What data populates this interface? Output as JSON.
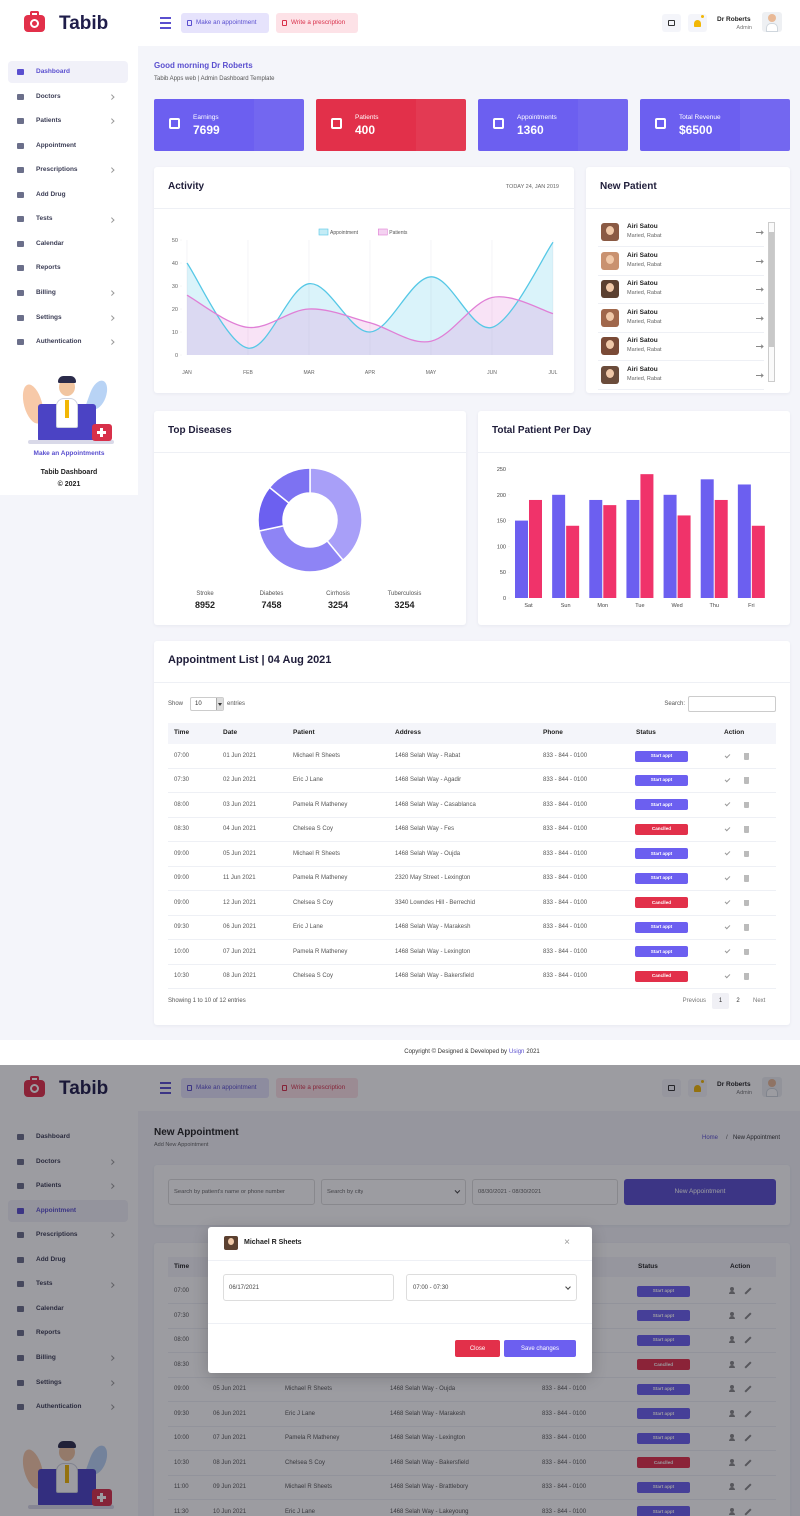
{
  "header": {
    "brand": "Tabib",
    "buttons": [
      "Make an appointment",
      "Write a prescription"
    ],
    "user": {
      "name": "Dr Roberts",
      "role": "Admin"
    }
  },
  "sidebar": {
    "menu": [
      "Dashboard",
      "Doctors",
      "Patients",
      "Appointment",
      "Prescriptions",
      "Add Drug",
      "Tests",
      "Calendar",
      "Reports",
      "Billing",
      "Settings",
      "Authentication"
    ],
    "promo": {
      "link": "Make an Appointments",
      "title": "Tabib Dashboard",
      "year": "© 2021"
    }
  },
  "greeting": {
    "title": "Good morning Dr Roberts",
    "subtitle": "Tabib Apps web | Admin Dashboard Template"
  },
  "stats": [
    {
      "label": "Earnings",
      "value": "7699"
    },
    {
      "label": "Patients",
      "value": "400"
    },
    {
      "label": "Appointments",
      "value": "1360"
    },
    {
      "label": "Total Revenue",
      "value": "$6500"
    }
  ],
  "chart_data": [
    {
      "type": "line",
      "title": "Activity",
      "subtitle": "TODAY 24, JAN 2019",
      "categories": [
        "JAN",
        "FEB",
        "MAR",
        "APR",
        "MAY",
        "JUN",
        "JUL"
      ],
      "series": [
        {
          "name": "Appointment",
          "color": "#56c8e6",
          "values": [
            40,
            3,
            31,
            10,
            34,
            12,
            49
          ]
        },
        {
          "name": "Patients",
          "color": "#e07fd6",
          "values": [
            26,
            12,
            20,
            14,
            6,
            25,
            18
          ]
        }
      ],
      "ylim": [
        0,
        50
      ],
      "yticks": [
        0,
        10,
        20,
        30,
        40,
        50
      ]
    },
    {
      "type": "pie",
      "title": "Top Diseases",
      "categories": [
        "Stroke",
        "Diabetes",
        "Cirrhosis",
        "Tuberculosis"
      ],
      "values": [
        8952,
        7458,
        3254,
        3254
      ],
      "colors": [
        "#a89ff8",
        "#8e84f5",
        "#6c60f0",
        "#7d72f2"
      ]
    },
    {
      "type": "bar",
      "title": "Total Patient Per Day",
      "categories": [
        "Sat",
        "Sun",
        "Mon",
        "Tue",
        "Wed",
        "Thu",
        "Fri"
      ],
      "series": [
        {
          "color": "#6c5ff0",
          "values": [
            150,
            200,
            190,
            190,
            200,
            230,
            220
          ]
        },
        {
          "color": "#f0336a",
          "values": [
            190,
            140,
            180,
            240,
            160,
            190,
            140
          ]
        }
      ],
      "ylim": [
        0,
        250
      ],
      "yticks": [
        0,
        50,
        100,
        150,
        200,
        250
      ]
    }
  ],
  "new_patients": {
    "title": "New Patient",
    "items": [
      {
        "name": "Airi Satou",
        "info": "Maried, Rabat"
      },
      {
        "name": "Airi Satou",
        "info": "Maried, Rabat"
      },
      {
        "name": "Airi Satou",
        "info": "Maried, Rabat"
      },
      {
        "name": "Airi Satou",
        "info": "Maried, Rabat"
      },
      {
        "name": "Airi Satou",
        "info": "Maried, Rabat"
      },
      {
        "name": "Airi Satou",
        "info": "Maried, Rabat"
      }
    ]
  },
  "appointment_list": {
    "title": "Appointment List | 04 Aug 2021",
    "show": "Show",
    "page_size": "10",
    "entries": "entries",
    "search": "Search:",
    "columns": [
      "Time",
      "Date",
      "Patient",
      "Address",
      "Phone",
      "Status",
      "Action"
    ],
    "rows": [
      [
        "07:00",
        "01 Jun 2021",
        "Michael R Sheets",
        "1468 Selah Way - Rabat",
        "833 - 844 - 0100",
        "Start appt"
      ],
      [
        "07:30",
        "02 Jun 2021",
        "Eric J Lane",
        "1468 Selah Way - Agadir",
        "833 - 844 - 0100",
        "Start appt"
      ],
      [
        "08:00",
        "03 Jun 2021",
        "Pamela R Matheney",
        "1468 Selah Way - Casablanca",
        "833 - 844 - 0100",
        "Start appt"
      ],
      [
        "08:30",
        "04 Jun 2021",
        "Chelsea S Coy",
        "1468 Selah Way - Fes",
        "833 - 844 - 0100",
        "Canclled"
      ],
      [
        "09:00",
        "05 Jun 2021",
        "Michael R Sheets",
        "1468 Selah Way - Oujda",
        "833 - 844 - 0100",
        "Start appt"
      ],
      [
        "09:00",
        "11 Jun 2021",
        "Pamela R Matheney",
        "2320 May Street - Lexington",
        "833 - 844 - 0100",
        "Start appt"
      ],
      [
        "09:00",
        "12 Jun 2021",
        "Chelsea S Coy",
        "3340 Lowndes Hill - Berrechid",
        "833 - 844 - 0100",
        "Canclled"
      ],
      [
        "09:30",
        "06 Jun 2021",
        "Eric J Lane",
        "1468 Selah Way - Marakesh",
        "833 - 844 - 0100",
        "Start appt"
      ],
      [
        "10:00",
        "07 Jun 2021",
        "Pamela R Matheney",
        "1468 Selah Way - Lexington",
        "833 - 844 - 0100",
        "Start appt"
      ],
      [
        "10:30",
        "08 Jun 2021",
        "Chelsea S Coy",
        "1468 Selah Way - Bakersfield",
        "833 - 844 - 0100",
        "Canclled"
      ]
    ],
    "status_colors": {
      "Start appt": "#6c5ff0",
      "Canclled": "#e2304a"
    },
    "summary": "Showing 1 to 10 of 12 entries",
    "pagination": [
      "Previous",
      "1",
      "2",
      "Next"
    ]
  },
  "footer": {
    "text": "Copyright © Designed & Developed by",
    "link": "Usign",
    "year": "2021"
  },
  "new_appointment": {
    "title": "New Appointment",
    "subtitle": "Add New Appointment",
    "breadcrumb": [
      "Home",
      "/",
      "New Appointment"
    ],
    "filters": [
      "Search by patient's name or phone number",
      "Search by city",
      "08/30/2021 - 08/30/2021"
    ],
    "button": "New Appointment",
    "rows": [
      [
        "07:00",
        null,
        null,
        null,
        null,
        "Start appt"
      ],
      [
        "07:30",
        null,
        null,
        null,
        null,
        "Start appt"
      ],
      [
        "08:00",
        null,
        null,
        null,
        null,
        "Start appt"
      ],
      [
        "08:30",
        null,
        null,
        null,
        null,
        "Canclled"
      ],
      [
        "09:00",
        "05 Jun 2021",
        "Michael R Sheets",
        "1468 Selah Way - Oujda",
        "833 - 844 - 0100",
        "Start appt"
      ],
      [
        "09:30",
        "06 Jun 2021",
        "Eric J Lane",
        "1468 Selah Way - Marakesh",
        "833 - 844 - 0100",
        "Start appt"
      ],
      [
        "10:00",
        "07 Jun 2021",
        "Pamela R Matheney",
        "1468 Selah Way - Lexington",
        "833 - 844 - 0100",
        "Start appt"
      ],
      [
        "10:30",
        "08 Jun 2021",
        "Chelsea S Coy",
        "1468 Selah Way - Bakersfield",
        "833 - 844 - 0100",
        "Canclled"
      ],
      [
        "11:00",
        "09 Jun 2021",
        "Michael R Sheets",
        "1468 Selah Way - Brattlebory",
        "833 - 844 - 0100",
        "Start appt"
      ],
      [
        "11:30",
        "10 Jun 2021",
        "Eric J Lane",
        "1468 Selah Way - Lakeyoung",
        "833 - 844 - 0100",
        "Start appt"
      ]
    ]
  },
  "modal": {
    "patient": "Michael R Sheets",
    "close_icon": "×",
    "date": "06/17/2021",
    "time": "07:00 - 07:30",
    "buttons": [
      "Close",
      "Save changes"
    ]
  }
}
